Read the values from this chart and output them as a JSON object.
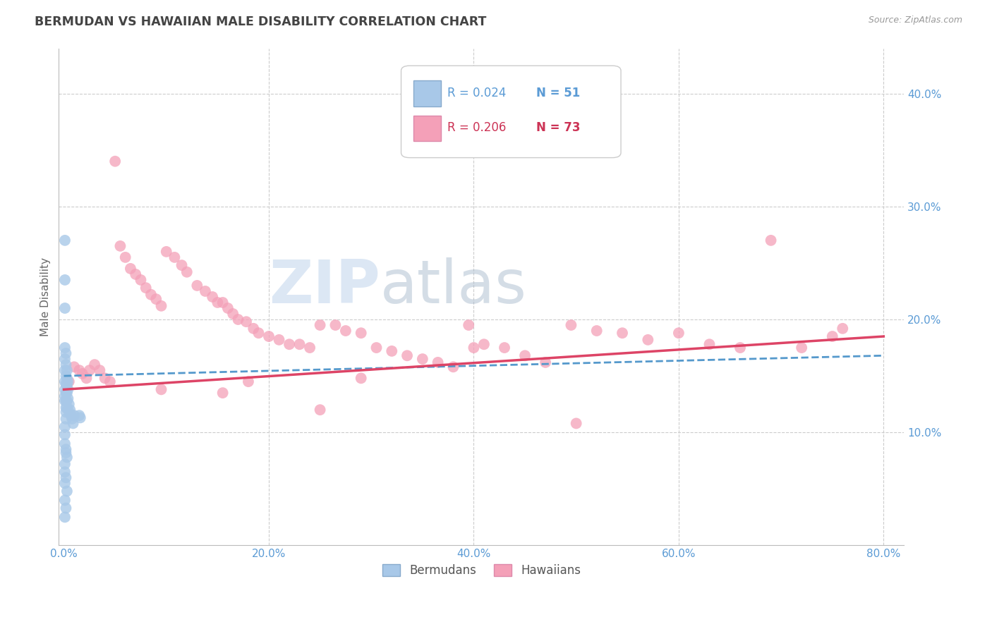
{
  "title": "BERMUDAN VS HAWAIIAN MALE DISABILITY CORRELATION CHART",
  "source": "Source: ZipAtlas.com",
  "ylabel": "Male Disability",
  "ytick_values": [
    0.1,
    0.2,
    0.3,
    0.4
  ],
  "xtick_values": [
    0.0,
    0.2,
    0.4,
    0.6,
    0.8
  ],
  "xlim": [
    -0.005,
    0.82
  ],
  "ylim": [
    0.0,
    0.44
  ],
  "bermudan_color": "#a8c8e8",
  "hawaiian_color": "#f4a0b8",
  "bermudan_line_color": "#5599cc",
  "hawaiian_line_color": "#dd4466",
  "legend_bermudan_r": "R = 0.024",
  "legend_bermudan_n": "N = 51",
  "legend_hawaiian_r": "R = 0.206",
  "legend_hawaiian_n": "N = 73",
  "legend_label_bermudan": "Bermudans",
  "legend_label_hawaiian": "Hawaiians",
  "watermark_zip": "ZIP",
  "watermark_atlas": "atlas",
  "background_color": "#ffffff",
  "grid_color": "#cccccc",
  "title_color": "#444444",
  "axis_label_color": "#5b9bd5",
  "bermudan_x": [
    0.001,
    0.001,
    0.001,
    0.001,
    0.001,
    0.001,
    0.001,
    0.001,
    0.001,
    0.001,
    0.002,
    0.002,
    0.002,
    0.002,
    0.002,
    0.002,
    0.002,
    0.002,
    0.002,
    0.003,
    0.003,
    0.003,
    0.003,
    0.003,
    0.003,
    0.004,
    0.004,
    0.004,
    0.005,
    0.005,
    0.006,
    0.007,
    0.008,
    0.009,
    0.01,
    0.001,
    0.001,
    0.001,
    0.002,
    0.002,
    0.003,
    0.001,
    0.001,
    0.002,
    0.001,
    0.003,
    0.001,
    0.002,
    0.001,
    0.015,
    0.016
  ],
  "bermudan_y": [
    0.27,
    0.235,
    0.21,
    0.175,
    0.165,
    0.155,
    0.145,
    0.138,
    0.132,
    0.128,
    0.17,
    0.16,
    0.15,
    0.143,
    0.135,
    0.128,
    0.122,
    0.118,
    0.112,
    0.155,
    0.148,
    0.142,
    0.135,
    0.128,
    0.122,
    0.145,
    0.138,
    0.13,
    0.125,
    0.118,
    0.12,
    0.115,
    0.112,
    0.108,
    0.115,
    0.105,
    0.098,
    0.09,
    0.085,
    0.082,
    0.078,
    0.072,
    0.065,
    0.06,
    0.055,
    0.048,
    0.04,
    0.033,
    0.025,
    0.115,
    0.113
  ],
  "hawaiian_x": [
    0.005,
    0.01,
    0.015,
    0.018,
    0.022,
    0.025,
    0.03,
    0.035,
    0.04,
    0.045,
    0.05,
    0.055,
    0.06,
    0.065,
    0.07,
    0.075,
    0.08,
    0.085,
    0.09,
    0.095,
    0.1,
    0.108,
    0.115,
    0.12,
    0.13,
    0.138,
    0.145,
    0.15,
    0.155,
    0.16,
    0.165,
    0.17,
    0.178,
    0.185,
    0.19,
    0.2,
    0.21,
    0.22,
    0.23,
    0.24,
    0.25,
    0.265,
    0.275,
    0.29,
    0.305,
    0.32,
    0.335,
    0.35,
    0.365,
    0.38,
    0.395,
    0.41,
    0.43,
    0.45,
    0.47,
    0.495,
    0.52,
    0.545,
    0.57,
    0.6,
    0.63,
    0.66,
    0.69,
    0.72,
    0.75,
    0.4,
    0.29,
    0.18,
    0.095,
    0.155,
    0.25,
    0.5,
    0.76
  ],
  "hawaiian_y": [
    0.145,
    0.158,
    0.155,
    0.152,
    0.148,
    0.155,
    0.16,
    0.155,
    0.148,
    0.145,
    0.34,
    0.265,
    0.255,
    0.245,
    0.24,
    0.235,
    0.228,
    0.222,
    0.218,
    0.212,
    0.26,
    0.255,
    0.248,
    0.242,
    0.23,
    0.225,
    0.22,
    0.215,
    0.215,
    0.21,
    0.205,
    0.2,
    0.198,
    0.192,
    0.188,
    0.185,
    0.182,
    0.178,
    0.178,
    0.175,
    0.195,
    0.195,
    0.19,
    0.188,
    0.175,
    0.172,
    0.168,
    0.165,
    0.162,
    0.158,
    0.195,
    0.178,
    0.175,
    0.168,
    0.162,
    0.195,
    0.19,
    0.188,
    0.182,
    0.188,
    0.178,
    0.175,
    0.27,
    0.175,
    0.185,
    0.175,
    0.148,
    0.145,
    0.138,
    0.135,
    0.12,
    0.108,
    0.192
  ],
  "b_line_x0": 0.0,
  "b_line_x1": 0.8,
  "b_line_y0": 0.15,
  "b_line_y1": 0.168,
  "h_line_x0": 0.0,
  "h_line_x1": 0.8,
  "h_line_y0": 0.138,
  "h_line_y1": 0.185
}
